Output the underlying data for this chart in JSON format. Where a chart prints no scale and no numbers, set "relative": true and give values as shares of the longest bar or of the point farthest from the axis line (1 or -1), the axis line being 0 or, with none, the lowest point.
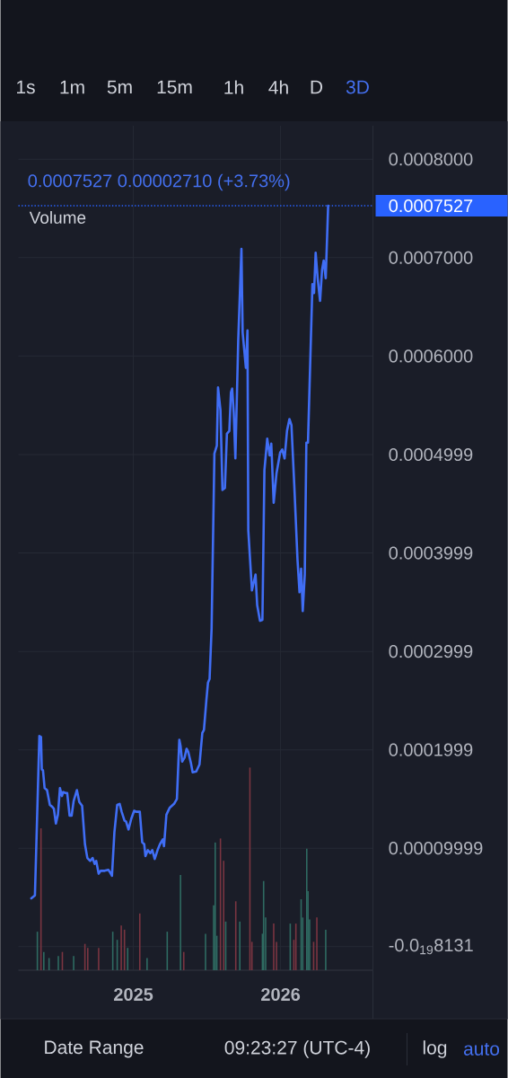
{
  "chart_data": [
    {
      "type": "line",
      "subtitle": "0.0007527 0.00002710 (+3.73%)",
      "x": [
        "2024-04-23",
        "2024-05-02",
        "2024-05-13",
        "2024-05-17",
        "2024-05-19",
        "2024-05-22",
        "2024-05-26",
        "2024-06-01",
        "2024-06-08",
        "2024-06-14",
        "2024-06-18",
        "2024-06-23",
        "2024-06-28",
        "2024-07-03",
        "2024-07-08",
        "2024-07-11",
        "2024-07-17",
        "2024-07-21",
        "2024-07-27",
        "2024-08-01",
        "2024-08-06",
        "2024-08-14",
        "2024-08-20",
        "2024-08-27",
        "2024-09-03",
        "2024-09-09",
        "2024-09-16",
        "2024-09-22",
        "2024-09-27",
        "2024-10-01",
        "2024-10-07",
        "2024-10-12",
        "2024-10-22",
        "2024-10-31",
        "2024-11-05",
        "2024-11-09",
        "2024-11-15",
        "2024-11-22",
        "2024-11-28",
        "2024-12-03",
        "2024-12-10",
        "2024-12-14",
        "2024-12-20",
        "2024-12-27",
        "2025-01-03",
        "2025-01-08",
        "2025-01-17",
        "2025-01-23",
        "2025-01-28",
        "2025-01-31",
        "2025-02-06",
        "2025-02-12",
        "2025-02-17",
        "2025-02-23",
        "2025-03-02",
        "2025-03-08",
        "2025-03-15",
        "2025-03-18",
        "2025-03-24",
        "2025-04-01",
        "2025-04-12",
        "2025-04-19",
        "2025-04-25",
        "2025-04-28",
        "2025-05-02",
        "2025-05-08",
        "2025-05-13",
        "2025-05-17",
        "2025-05-24",
        "2025-05-28",
        "2025-06-06",
        "2025-06-14",
        "2025-06-21",
        "2025-06-25",
        "2025-07-01",
        "2025-07-05",
        "2025-07-09",
        "2025-07-14",
        "2025-07-21",
        "2025-07-27",
        "2025-07-30",
        "2025-08-05",
        "2025-08-10",
        "2025-08-16",
        "2025-08-21",
        "2025-08-27",
        "2025-08-31",
        "2025-09-03",
        "2025-09-07",
        "2025-09-11",
        "2025-09-18",
        "2025-09-26",
        "2025-09-29",
        "2025-10-07",
        "2025-10-11",
        "2025-10-13",
        "2025-10-22",
        "2025-10-31",
        "2025-11-04",
        "2025-11-11",
        "2025-11-17",
        "2025-11-22",
        "2025-11-29",
        "2025-12-05",
        "2025-12-09",
        "2025-12-15",
        "2025-12-22",
        "2025-12-31",
        "2026-01-05",
        "2026-01-11",
        "2026-01-17",
        "2026-01-23",
        "2026-01-28",
        "2026-02-04",
        "2026-02-12",
        "2026-02-17",
        "2026-02-21",
        "2026-02-25",
        "2026-03-02",
        "2026-03-06",
        "2026-03-10",
        "2026-03-21",
        "2026-03-25",
        "2026-03-29",
        "2026-04-03",
        "2026-04-09",
        "2026-04-14",
        "2026-04-18",
        "2026-04-23",
        "2026-04-29"
      ],
      "values": [
        4.9e-05,
        5.2e-05,
        0.000214,
        0.000213,
        0.00018,
        0.000179,
        0.000161,
        0.000159,
        0.000144,
        0.000142,
        0.00014,
        0.000125,
        0.000134,
        0.000161,
        0.000153,
        0.000157,
        0.000156,
        0.000156,
        0.000133,
        0.000133,
        0.000148,
        0.000159,
        0.000147,
        0.000143,
        0.000104,
        9e-05,
        8.7e-05,
        9e-05,
        8.4e-05,
        8.7e-05,
        7.4e-05,
        7.7e-05,
        7.7e-05,
        7.8e-05,
        7.5e-05,
        7.2e-05,
        0.000116,
        0.000144,
        0.000145,
        0.000137,
        0.000128,
        0.000127,
        0.000119,
        0.00013,
        0.000138,
        0.000137,
        0.000137,
        0.000106,
        0.000104,
        9.2e-05,
        9.8e-05,
        9.5e-05,
        9.8e-05,
        8.9e-05,
        9.8e-05,
        0.000104,
        0.000109,
        0.000102,
        0.000134,
        0.000141,
        0.000145,
        0.00015,
        0.00021,
        0.000204,
        0.000188,
        0.000192,
        0.000201,
        0.000198,
        0.000186,
        0.000177,
        0.000178,
        0.000185,
        0.000217,
        0.00022,
        0.00025,
        0.000268,
        0.000272,
        0.000323,
        0.000501,
        0.000509,
        0.000568,
        0.000545,
        0.000464,
        0.000466,
        0.000521,
        0.000524,
        0.000563,
        0.000567,
        0.000542,
        0.000496,
        0.000615,
        0.000709,
        0.000624,
        0.000588,
        0.000626,
        0.000423,
        0.000362,
        0.000378,
        0.000347,
        0.000331,
        0.000332,
        0.000484,
        0.000516,
        0.000499,
        0.000511,
        0.000451,
        0.000481,
        0.000502,
        0.000505,
        0.000496,
        0.000524,
        0.000536,
        0.00053,
        0.000469,
        0.000393,
        0.00036,
        0.000384,
        0.000341,
        0.000378,
        0.000512,
        0.000512,
        0.000673,
        0.000664,
        0.000705,
        0.000679,
        0.000656,
        0.000688,
        0.000697,
        0.000679,
        0.0007527
      ],
      "color": "#406ef5",
      "xlim": [
        "2024-03-22",
        "2026-08-18"
      ],
      "xticks": [
        "2025",
        "2026"
      ],
      "ylim": [
        -2.4e-05,
        0.000834
      ],
      "yticks": [
        {
          "value": 0.0008,
          "label": "0.0008000"
        },
        {
          "value": 0.0007,
          "label": "0.0007000"
        },
        {
          "value": 0.0006,
          "label": "0.0006000"
        },
        {
          "value": 0.0004999,
          "label": "0.0004999"
        },
        {
          "value": 0.0003999,
          "label": "0.0003999"
        },
        {
          "value": 0.0002999,
          "label": "0.0002999"
        },
        {
          "value": 0.0001999,
          "label": "0.0001999"
        },
        {
          "value": 9.999e-05,
          "label": "0.00009999"
        },
        {
          "value": -8.131e-20,
          "label": "-0.0$_{19}$8131"
        }
      ],
      "grid": true,
      "ref_lines": [
        {
          "axis": "y",
          "value": 0.0007527,
          "label": "0.0007527",
          "color": "#2962ff",
          "line_style": "dotted"
        }
      ],
      "annotations": [
        "1s",
        "1m",
        "5m",
        "15m",
        "1h",
        "4h",
        "D",
        "3D",
        "Date Range",
        "09:23:27 (UTC-4)",
        "log",
        "auto"
      ]
    },
    {
      "type": "bar",
      "title": "Volume",
      "relative": true,
      "x": [
        "2024-05-08",
        "2024-05-17",
        "2024-05-24",
        "2024-06-06",
        "2024-06-29",
        "2024-07-09",
        "2024-08-06",
        "2024-09-03",
        "2024-09-10",
        "2024-10-07",
        "2024-11-11",
        "2024-11-22",
        "2024-12-02",
        "2024-12-10",
        "2024-12-18",
        "2025-01-17",
        "2025-02-04",
        "2025-03-26",
        "2025-04-28",
        "2025-05-06",
        "2025-06-29",
        "2025-07-19",
        "2025-07-23",
        "2025-07-27",
        "2025-08-05",
        "2025-08-13",
        "2025-08-18",
        "2025-09-12",
        "2025-09-22",
        "2025-10-17",
        "2025-10-22",
        "2025-11-17",
        "2025-11-20",
        "2025-11-25",
        "2025-12-15",
        "2025-12-22",
        "2026-01-25",
        "2026-02-03",
        "2026-02-08",
        "2026-02-21",
        "2026-02-25",
        "2026-03-07",
        "2026-03-10",
        "2026-03-14",
        "2026-03-24",
        "2026-04-01",
        "2026-04-23"
      ],
      "values": [
        0.19,
        0.7,
        0.09,
        0.06,
        0.07,
        0.09,
        0.07,
        0.13,
        0.11,
        0.11,
        0.19,
        0.15,
        0.22,
        0.2,
        0.11,
        0.28,
        0.06,
        0.19,
        0.47,
        0.09,
        0.18,
        0.32,
        0.63,
        0.17,
        0.65,
        0.54,
        0.24,
        0.34,
        0.24,
        1,
        0.14,
        0.18,
        0.44,
        0.26,
        0.23,
        0.14,
        0.23,
        0.15,
        0.23,
        0.35,
        0.26,
        0.6,
        0.39,
        0.25,
        0.14,
        0.26,
        0.2
      ],
      "colors": [
        "#2f6b62",
        "#7a3541",
        "#2f6b62",
        "#2f6b62",
        "#2f6b62",
        "#7a3541",
        "#2f6b62",
        "#7a3541",
        "#7a3541",
        "#7a3541",
        "#2f6b62",
        "#2f6b62",
        "#7a3541",
        "#7a3541",
        "#2f6b62",
        "#7a3541",
        "#2f6b62",
        "#2f6b62",
        "#2f6b62",
        "#7a3541",
        "#2f6b62",
        "#2f6b62",
        "#2f6b62",
        "#2f6b62",
        "#7a3541",
        "#7a3541",
        "#2f6b62",
        "#7a3541",
        "#2f6b62",
        "#7a3541",
        "#7a3541",
        "#2f6b62",
        "#2f6b62",
        "#2f6b62",
        "#7a3541",
        "#7a3541",
        "#2f6b62",
        "#7a3541",
        "#7a3541",
        "#2f6b62",
        "#2f6b62",
        "#2f6b62",
        "#2f6b62",
        "#2f6b62",
        "#7a3541",
        "#7a3541",
        "#2f6b62"
      ],
      "xlim": [
        "2024-03-22",
        "2026-08-18"
      ],
      "tick_labels": false
    }
  ]
}
